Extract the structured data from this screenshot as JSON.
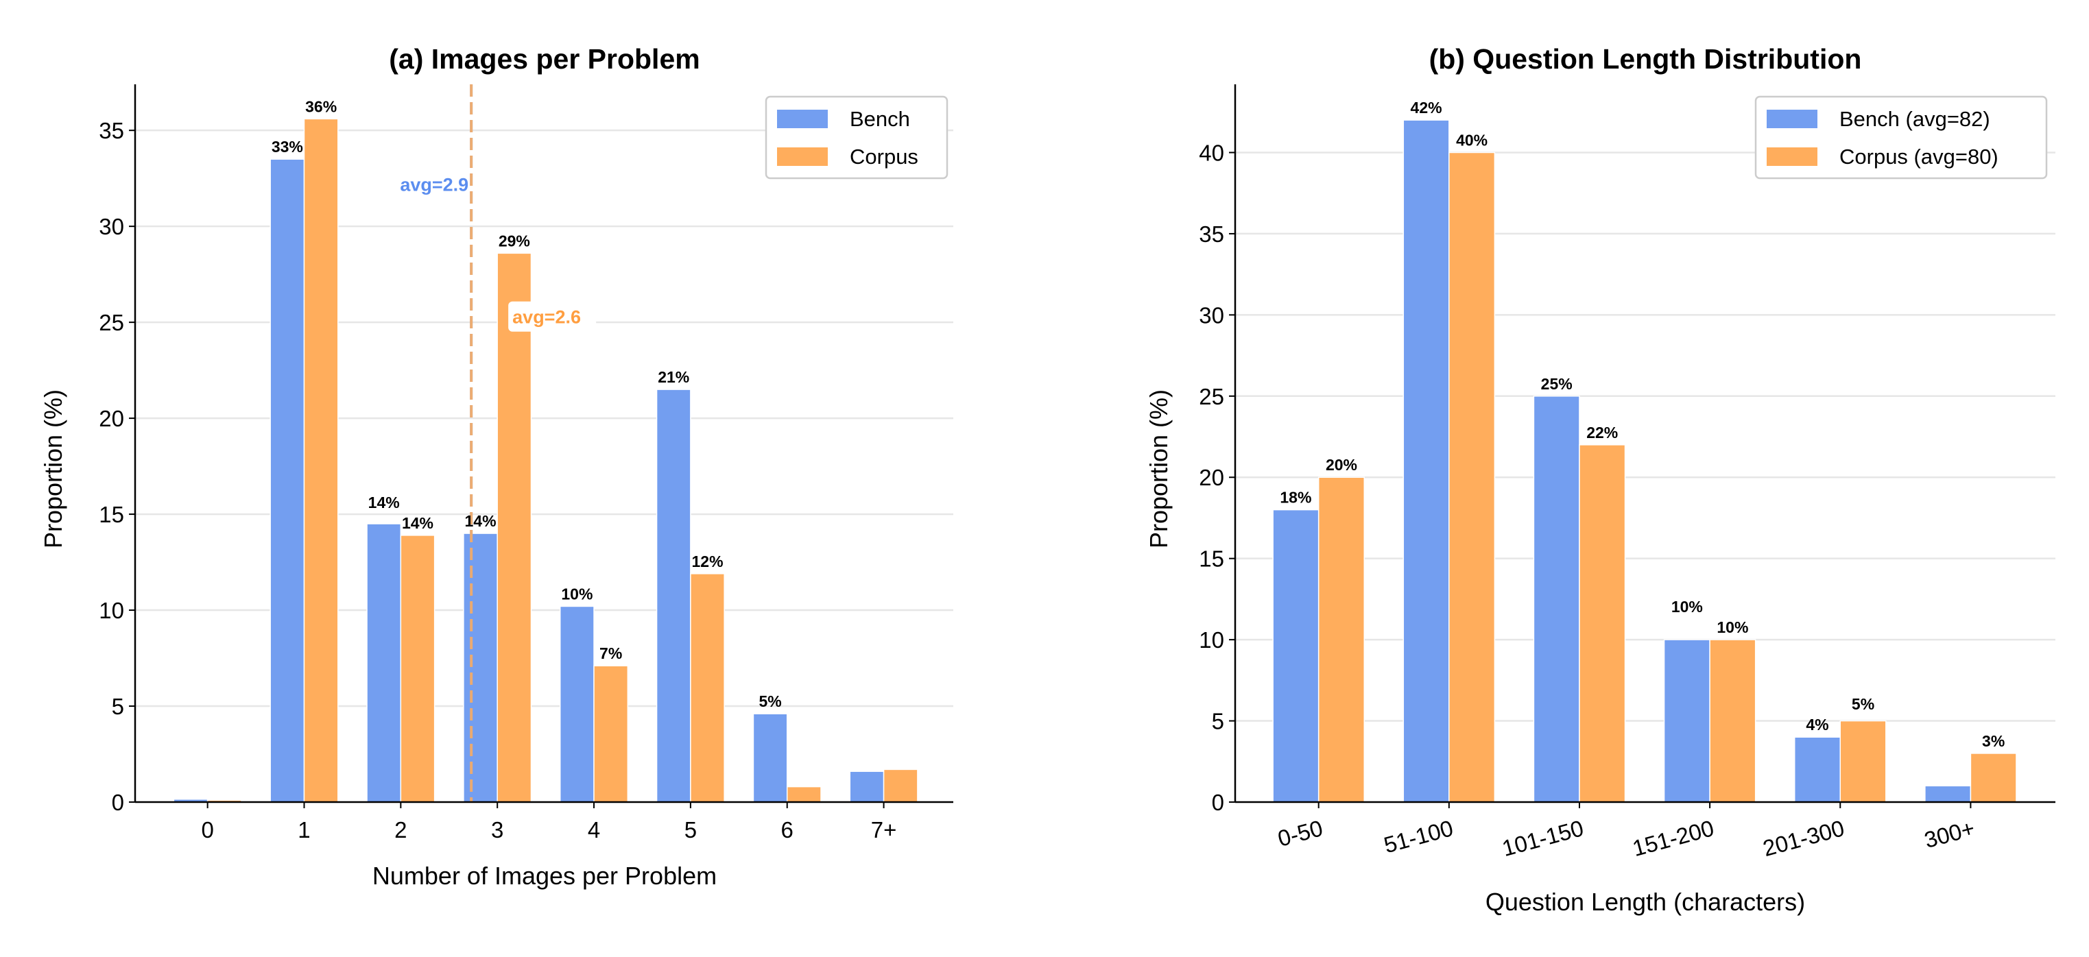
{
  "colors": {
    "bench": "#739ef0",
    "corpus": "#ffad5c",
    "bench_text": "#5b8def",
    "corpus_text": "#ff9e40",
    "grid": "#e6e6e6"
  },
  "chart_data": [
    {
      "type": "bar",
      "title": "(a) Images per Problem",
      "xlabel": "Number of Images per Problem",
      "ylabel": "Proportion (%)",
      "categories": [
        "0",
        "1",
        "2",
        "3",
        "4",
        "5",
        "6",
        "7+"
      ],
      "ylim": [
        0,
        37.4
      ],
      "yticks": [
        0,
        5,
        10,
        15,
        20,
        25,
        30,
        35
      ],
      "grid": true,
      "legend_position": "top-right",
      "series": [
        {
          "name": "Bench",
          "values": [
            0.15,
            33.5,
            14.5,
            14.0,
            10.2,
            21.5,
            4.6,
            1.6
          ],
          "labels": [
            null,
            "33%",
            "14%",
            "14%",
            "10%",
            "21%",
            "5%",
            null
          ]
        },
        {
          "name": "Corpus",
          "values": [
            0.1,
            35.6,
            13.9,
            28.6,
            7.1,
            11.9,
            0.8,
            1.7
          ],
          "labels": [
            null,
            "36%",
            "14%",
            "29%",
            "7%",
            "12%",
            null,
            null
          ]
        }
      ],
      "annotations": [
        {
          "text": "avg=2.9",
          "series": "Bench",
          "y": 32.2
        },
        {
          "text": "avg=2.6",
          "series": "Corpus",
          "y": 25.3
        }
      ],
      "avg_line_position": 2.73
    },
    {
      "type": "bar",
      "title": "(b) Question Length Distribution",
      "xlabel": "Question Length (characters)",
      "ylabel": "Proportion (%)",
      "categories": [
        "0-50",
        "51-100",
        "101-150",
        "151-200",
        "201-300",
        "300+"
      ],
      "ylim": [
        0,
        44.2
      ],
      "yticks": [
        0,
        5,
        10,
        15,
        20,
        25,
        30,
        35,
        40
      ],
      "grid": true,
      "legend_position": "top-right",
      "series": [
        {
          "name": "Bench (avg=82)",
          "values": [
            18,
            42,
            25,
            10,
            4,
            1
          ],
          "labels": [
            "18%",
            "42%",
            "25%",
            "10%",
            "4%",
            null
          ]
        },
        {
          "name": "Corpus (avg=80)",
          "values": [
            20,
            40,
            22,
            10,
            5,
            3
          ],
          "labels": [
            "20%",
            "40%",
            "22%",
            "10%",
            "5%",
            "3%"
          ]
        }
      ]
    }
  ]
}
